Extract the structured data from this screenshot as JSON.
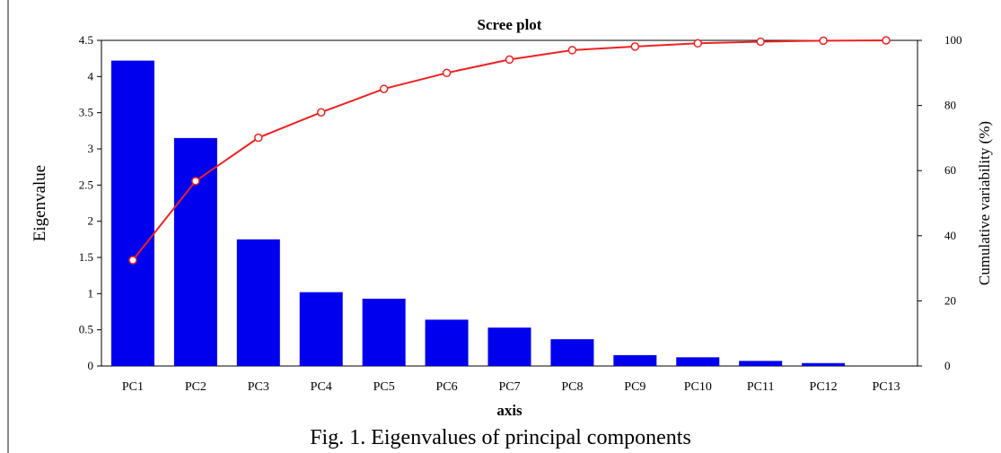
{
  "caption": "Fig. 1. Eigenvalues of principal components",
  "chart_data": {
    "type": "bar",
    "title": "Scree plot",
    "xlabel": "axis",
    "ylabel": "Eigenvalue",
    "y2label": "Cumulative variability (%)",
    "categories": [
      "PC1",
      "PC2",
      "PC3",
      "PC4",
      "PC5",
      "PC6",
      "PC7",
      "PC8",
      "PC9",
      "PC10",
      "PC11",
      "PC12",
      "PC13"
    ],
    "ylim": [
      0,
      4.5
    ],
    "y2lim": [
      0,
      100
    ],
    "yticks": [
      "0",
      "0.5",
      "1",
      "1.5",
      "2",
      "2.5",
      "3",
      "3.5",
      "4",
      "4.5"
    ],
    "y2ticks": [
      "0",
      "20",
      "40",
      "60",
      "80",
      "100"
    ],
    "grid": false,
    "series": [
      {
        "type": "bar",
        "axis": "left",
        "color": "#0000ee",
        "values": [
          4.22,
          3.15,
          1.75,
          1.02,
          0.93,
          0.64,
          0.53,
          0.37,
          0.15,
          0.12,
          0.07,
          0.04,
          0.0
        ]
      },
      {
        "type": "line",
        "axis": "right",
        "color": "#ee2222",
        "values": [
          32.5,
          56.8,
          70.1,
          77.9,
          85.1,
          90.0,
          94.1,
          97.0,
          98.1,
          99.1,
          99.6,
          99.9,
          100.0
        ]
      }
    ]
  }
}
